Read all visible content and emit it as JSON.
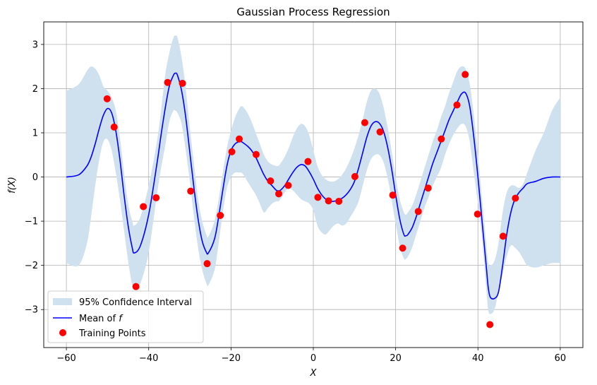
{
  "chart_data": {
    "type": "line",
    "title": "Gaussian Process Regression",
    "xlabel": "X",
    "ylabel": "f(X)",
    "xlim": [
      -65.5,
      65.5
    ],
    "ylim": [
      -3.86,
      3.51
    ],
    "xticks": [
      -60,
      -40,
      -20,
      0,
      20,
      40,
      60
    ],
    "yticks": [
      -3,
      -2,
      -1,
      0,
      1,
      2,
      3
    ],
    "grid": true,
    "legend_position": "lower-left",
    "legend": {
      "ci_label": "95% Confidence Interval",
      "mean_label_prefix": "Mean of ",
      "mean_label_var": "f",
      "points_label": "Training Points"
    },
    "colors": {
      "mean": "#0000ff",
      "ci": "#cfe0ee",
      "points": "#ff0000",
      "grid": "#b0b0b0"
    },
    "series": [
      {
        "name": "Mean of f",
        "x": [
          -60,
          -57,
          -55,
          -54,
          -53,
          -52,
          -51,
          -50,
          -49,
          -48,
          -47,
          -46,
          -45,
          -44,
          -43.5,
          -42,
          -40,
          -38,
          -37,
          -36,
          -35,
          -34,
          -33.5,
          -33,
          -32,
          -31,
          -30,
          -29,
          -28,
          -27,
          -26,
          -25.5,
          -24,
          -23,
          -22,
          -21,
          -20,
          -19,
          -18,
          -17.5,
          -17,
          -16,
          -15,
          -14,
          -13,
          -12,
          -11,
          -10,
          -9,
          -8.5,
          -8,
          -7,
          -6,
          -5,
          -4,
          -3,
          -2,
          -1,
          0,
          1,
          2,
          3,
          4,
          5,
          6,
          7,
          8,
          9,
          10,
          11,
          12,
          13,
          14,
          15,
          16,
          17,
          18,
          19,
          20,
          21,
          22,
          22.5,
          23,
          24,
          25,
          26,
          27,
          28,
          29,
          30,
          31,
          32,
          33,
          34,
          35,
          36,
          37,
          38,
          39,
          40,
          41,
          42,
          42.5,
          43,
          44,
          45,
          46,
          47,
          48,
          49,
          50,
          51,
          52,
          54,
          56,
          58,
          60
        ],
        "values": [
          0.0,
          0.05,
          0.25,
          0.45,
          0.75,
          1.1,
          1.4,
          1.55,
          1.45,
          1.05,
          0.4,
          -0.4,
          -1.1,
          -1.6,
          -1.72,
          -1.55,
          -0.85,
          0.3,
          0.95,
          1.55,
          2.05,
          2.3,
          2.35,
          2.3,
          1.95,
          1.35,
          0.55,
          -0.25,
          -0.95,
          -1.45,
          -1.7,
          -1.72,
          -1.4,
          -0.9,
          -0.3,
          0.25,
          0.6,
          0.75,
          0.8,
          0.8,
          0.77,
          0.7,
          0.6,
          0.45,
          0.25,
          0.05,
          -0.1,
          -0.2,
          -0.3,
          -0.31,
          -0.3,
          -0.2,
          -0.05,
          0.1,
          0.22,
          0.28,
          0.25,
          0.12,
          -0.05,
          -0.25,
          -0.4,
          -0.5,
          -0.55,
          -0.55,
          -0.52,
          -0.48,
          -0.4,
          -0.28,
          -0.1,
          0.2,
          0.55,
          0.9,
          1.15,
          1.25,
          1.22,
          1.05,
          0.7,
          0.2,
          -0.4,
          -0.95,
          -1.3,
          -1.33,
          -1.3,
          -1.15,
          -0.9,
          -0.6,
          -0.3,
          0.0,
          0.3,
          0.55,
          0.8,
          1.05,
          1.3,
          1.5,
          1.7,
          1.88,
          1.9,
          1.6,
          0.9,
          0.0,
          -1.0,
          -2.0,
          -2.5,
          -2.72,
          -2.75,
          -2.6,
          -2.0,
          -1.3,
          -0.8,
          -0.5,
          -0.35,
          -0.25,
          -0.15,
          -0.1,
          -0.03,
          0.0,
          0.0
        ],
        "ci_upper": [
          1.95,
          2.1,
          2.4,
          2.5,
          2.45,
          2.3,
          2.05,
          1.95,
          1.8,
          1.5,
          0.9,
          0.1,
          -0.6,
          -1.0,
          -1.1,
          -0.9,
          -0.2,
          0.8,
          1.5,
          2.3,
          2.8,
          3.15,
          3.2,
          3.15,
          2.7,
          2.0,
          1.1,
          0.3,
          -0.5,
          -1.0,
          -1.3,
          -1.35,
          -1.0,
          -0.5,
          0.1,
          0.65,
          1.05,
          1.35,
          1.55,
          1.6,
          1.58,
          1.45,
          1.25,
          1.0,
          0.75,
          0.5,
          0.35,
          0.28,
          0.25,
          0.25,
          0.3,
          0.45,
          0.65,
          0.9,
          1.1,
          1.2,
          1.15,
          0.95,
          0.6,
          0.25,
          0.05,
          -0.05,
          -0.1,
          -0.1,
          -0.05,
          0.05,
          0.2,
          0.4,
          0.65,
          0.95,
          1.3,
          1.7,
          1.95,
          2.0,
          1.9,
          1.6,
          1.15,
          0.6,
          0.0,
          -0.5,
          -0.8,
          -0.85,
          -0.8,
          -0.65,
          -0.4,
          -0.1,
          0.2,
          0.5,
          0.8,
          1.05,
          1.35,
          1.6,
          1.9,
          2.15,
          2.4,
          2.5,
          2.45,
          2.1,
          1.4,
          0.5,
          -0.5,
          -1.5,
          -1.95,
          -2.0,
          -1.9,
          -1.5,
          -0.8,
          -0.35,
          -0.2,
          -0.2,
          -0.25,
          -0.15,
          0.1,
          0.6,
          1.0,
          1.5,
          1.8,
          1.95,
          1.95
        ],
        "ci_lower": [
          -1.95,
          -2.0,
          -1.5,
          -0.9,
          -0.2,
          0.4,
          0.8,
          0.85,
          0.6,
          0.1,
          -0.5,
          -1.2,
          -1.9,
          -2.45,
          -2.5,
          -2.4,
          -1.7,
          -0.4,
          0.2,
          0.7,
          1.25,
          1.5,
          1.5,
          1.45,
          1.2,
          0.6,
          -0.1,
          -0.9,
          -1.6,
          -2.1,
          -2.4,
          -2.45,
          -2.1,
          -1.5,
          -0.8,
          -0.25,
          0.0,
          0.1,
          0.1,
          0.1,
          0.05,
          -0.1,
          -0.25,
          -0.4,
          -0.6,
          -0.8,
          -0.7,
          -0.6,
          -0.55,
          -0.55,
          -0.5,
          -0.35,
          -0.25,
          -0.3,
          -0.4,
          -0.5,
          -0.55,
          -0.6,
          -0.75,
          -1.1,
          -1.25,
          -1.3,
          -1.2,
          -1.1,
          -1.05,
          -1.1,
          -1.05,
          -0.9,
          -0.75,
          -0.55,
          -0.2,
          0.15,
          0.4,
          0.5,
          0.5,
          0.35,
          0.0,
          -0.5,
          -1.05,
          -1.55,
          -1.85,
          -1.85,
          -1.8,
          -1.6,
          -1.3,
          -1.0,
          -0.7,
          -0.45,
          -0.2,
          0.0,
          0.2,
          0.5,
          0.75,
          0.95,
          1.1,
          1.2,
          1.15,
          0.8,
          0.1,
          -0.6,
          -1.4,
          -2.5,
          -3.0,
          -3.1,
          -3.0,
          -2.6,
          -2.2,
          -1.8,
          -1.55,
          -1.6,
          -1.7,
          -1.85,
          -2.0,
          -2.05,
          -2.0,
          -1.95,
          -1.95,
          -1.95,
          -1.95
        ]
      },
      {
        "name": "Training Points",
        "x": [
          -50.1,
          -48.4,
          -43.1,
          -41.3,
          -38.2,
          -35.4,
          -31.8,
          -29.8,
          -25.8,
          -22.6,
          -19.8,
          -18.0,
          -13.9,
          -10.4,
          -8.4,
          -6.1,
          -1.3,
          1.1,
          3.7,
          6.2,
          10.1,
          12.5,
          16.2,
          19.3,
          21.7,
          25.5,
          27.9,
          31.1,
          34.9,
          36.9,
          39.9,
          42.9,
          46.1,
          49.1
        ],
        "values": [
          1.77,
          1.13,
          -2.48,
          -0.67,
          -0.47,
          2.14,
          2.12,
          -0.32,
          -1.96,
          -0.87,
          0.57,
          0.86,
          0.51,
          -0.09,
          -0.38,
          -0.19,
          0.35,
          -0.46,
          -0.54,
          -0.55,
          0.01,
          1.23,
          1.02,
          -0.41,
          -1.61,
          -0.78,
          -0.25,
          0.86,
          1.63,
          2.32,
          -0.84,
          -3.34,
          -1.34,
          -0.48
        ]
      }
    ]
  }
}
